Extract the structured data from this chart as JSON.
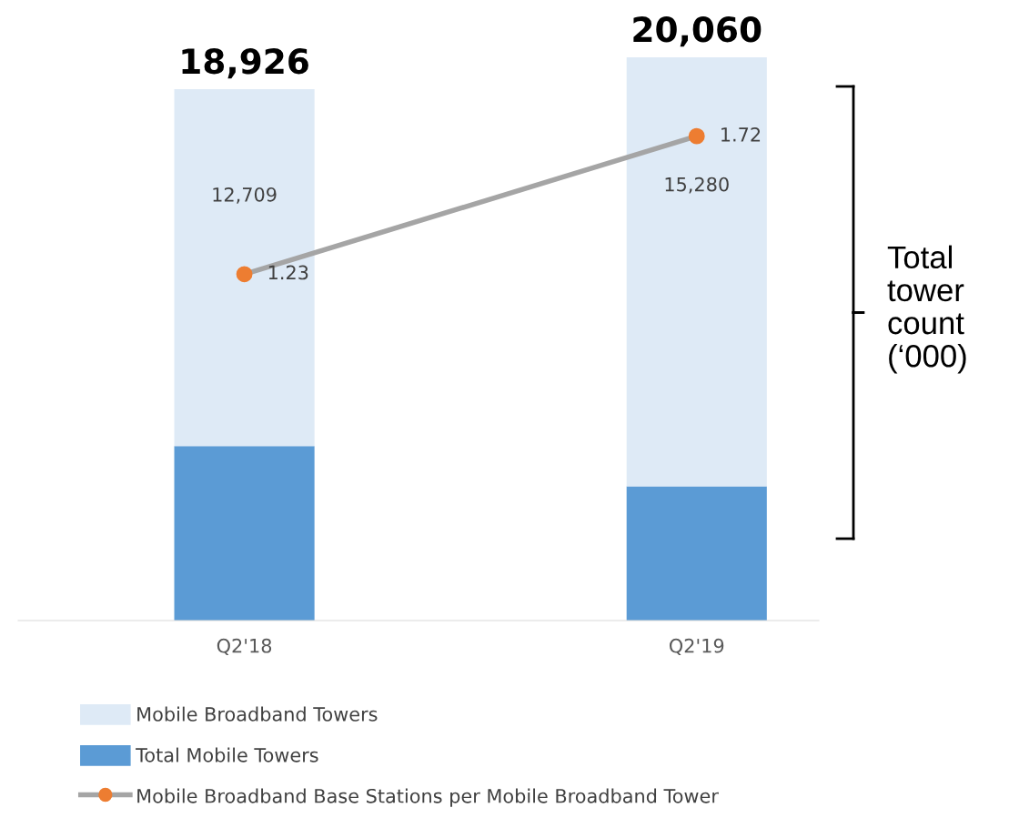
{
  "chart_data": {
    "type": "bar",
    "stacked": true,
    "ylim": [
      0,
      20060
    ],
    "categories": [
      "Q2'18",
      "Q2'19"
    ],
    "series": [
      {
        "name": "Total Mobile Towers",
        "color": "#5b9bd5",
        "values": [
          6217,
          4780
        ]
      },
      {
        "name": "Mobile Broadband Towers",
        "color": "#deeaf6",
        "values": [
          12709,
          15280
        ],
        "value_labels": [
          "12,709",
          "15,280"
        ]
      },
      {
        "name": "Mobile Broadband Base Stations per Mobile Broadband Tower",
        "type": "line",
        "axis": "y2",
        "color": "#a5a5a5",
        "colors": [
          "#ed7d31",
          "#ed7d31"
        ],
        "marker": "circle",
        "values": [
          1.23,
          1.72
        ],
        "value_labels": [
          "1.23",
          "1.72"
        ]
      }
    ],
    "y2lim": [
      0,
      2
    ],
    "totals": [
      "18,926",
      "20,060"
    ],
    "annotations": [
      "Total tower count (‘000)"
    ],
    "legend": "bottom",
    "grid": false,
    "tick_labels": "x"
  }
}
